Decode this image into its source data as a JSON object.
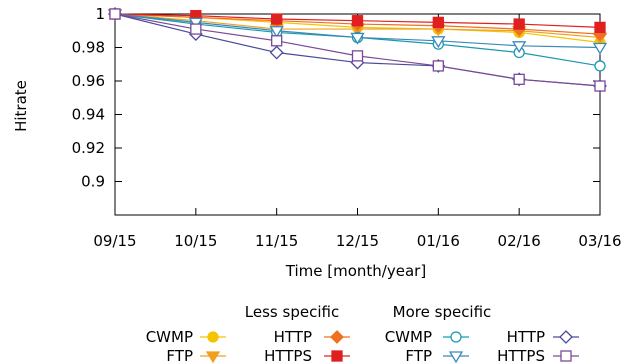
{
  "chart_data": {
    "type": "line",
    "x": [
      "09/15",
      "10/15",
      "11/15",
      "12/15",
      "01/16",
      "02/16",
      "03/16"
    ],
    "xlabel": "Time [month/year]",
    "ylabel": "Hitrate",
    "ylim": [
      0.88,
      1.0
    ],
    "yticks": [
      0.9,
      0.92,
      0.94,
      0.96,
      0.98,
      1
    ],
    "ytick_labels": [
      "0.9",
      "0.92",
      "0.94",
      "0.96",
      "0.98",
      "1"
    ],
    "grid": false,
    "legend_placement": "bottom",
    "legend_groups": [
      "Less specific",
      "More specific"
    ],
    "series": [
      {
        "name": "CWMP",
        "group": "Less specific",
        "color": "#f5c400",
        "marker": "circle-filled",
        "values": [
          1.0,
          0.998,
          0.995,
          0.992,
          0.991,
          0.989,
          0.983
        ]
      },
      {
        "name": "FTP",
        "group": "Less specific",
        "color": "#f0a020",
        "marker": "triangle-down-filled",
        "values": [
          1.0,
          0.996,
          0.991,
          0.991,
          0.991,
          0.99,
          0.986
        ]
      },
      {
        "name": "HTTP",
        "group": "Less specific",
        "color": "#ee7020",
        "marker": "diamond-filled",
        "values": [
          1.0,
          0.998,
          0.996,
          0.994,
          0.993,
          0.991,
          0.988
        ]
      },
      {
        "name": "HTTPS",
        "group": "Less specific",
        "color": "#e02020",
        "marker": "square-filled",
        "values": [
          1.0,
          0.999,
          0.997,
          0.996,
          0.995,
          0.994,
          0.992
        ]
      },
      {
        "name": "CWMP",
        "group": "More specific",
        "color": "#1a9ab0",
        "marker": "circle-open",
        "values": [
          1.0,
          0.994,
          0.989,
          0.986,
          0.982,
          0.977,
          0.969
        ]
      },
      {
        "name": "FTP",
        "group": "More specific",
        "color": "#3a8ab8",
        "marker": "triangle-down-open",
        "values": [
          1.0,
          0.995,
          0.99,
          0.986,
          0.984,
          0.981,
          0.98
        ]
      },
      {
        "name": "HTTP",
        "group": "More specific",
        "color": "#4a4a9a",
        "marker": "diamond-open",
        "values": [
          1.0,
          0.988,
          0.977,
          0.971,
          0.969,
          0.961,
          0.957
        ]
      },
      {
        "name": "HTTPS",
        "group": "More specific",
        "color": "#7a4a9a",
        "marker": "square-open",
        "values": [
          1.0,
          0.991,
          0.984,
          0.975,
          0.969,
          0.961,
          0.957
        ]
      }
    ]
  }
}
